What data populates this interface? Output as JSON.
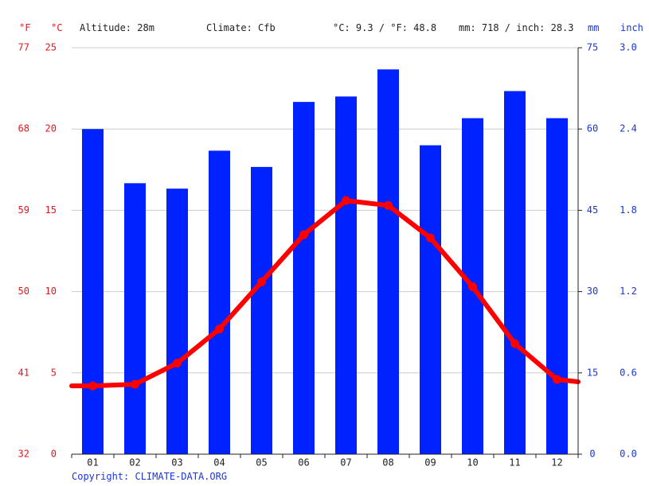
{
  "header": {
    "altitude": "Altitude: 28m",
    "climate": "Climate: Cfb",
    "temp_avg": "°C: 9.3 / °F: 48.8",
    "precip_total": "mm: 718 / inch: 28.3"
  },
  "units": {
    "fahrenheit": "°F",
    "celsius": "°C",
    "mm": "mm",
    "inch": "inch"
  },
  "copyright": "Copyright: CLIMATE-DATA.ORG",
  "colors": {
    "bars": "#0022ff",
    "line": "#ff0000",
    "temp_axis": "#e8141b",
    "precip_axis": "#1a37d6",
    "grid": "#cccccc"
  },
  "chart_data": {
    "type": "bar",
    "categories": [
      "01",
      "02",
      "03",
      "04",
      "05",
      "06",
      "07",
      "08",
      "09",
      "10",
      "11",
      "12"
    ],
    "series": [
      {
        "type": "bar",
        "axis": "precipitation_mm",
        "values": [
          60,
          50,
          49,
          56,
          53,
          65,
          66,
          71,
          57,
          62,
          67,
          62
        ]
      },
      {
        "type": "line",
        "axis": "temperature_c",
        "values": [
          4.2,
          4.3,
          5.6,
          7.7,
          10.6,
          13.5,
          15.6,
          15.3,
          13.3,
          10.3,
          6.8,
          4.6
        ]
      }
    ],
    "left_axis_c": {
      "ylim": [
        0,
        25
      ],
      "ticks": [
        "0",
        "5",
        "10",
        "15",
        "20",
        "25"
      ]
    },
    "left_axis_f": {
      "ticks": [
        "32",
        "41",
        "50",
        "59",
        "68",
        "77"
      ]
    },
    "right_axis_mm": {
      "ylim": [
        0,
        75
      ],
      "ticks": [
        "0",
        "15",
        "30",
        "45",
        "60",
        "75"
      ]
    },
    "right_axis_inch": {
      "ticks": [
        "0.0",
        "0.6",
        "1.2",
        "1.8",
        "2.4",
        "3.0"
      ]
    },
    "grid": true
  }
}
